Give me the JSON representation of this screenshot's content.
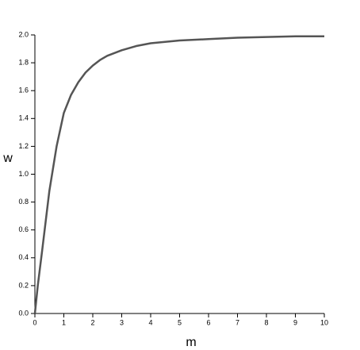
{
  "chart_data": {
    "type": "line",
    "x_label": "m",
    "y_label": "w",
    "x": [
      0,
      0.1,
      0.25,
      0.5,
      0.75,
      1,
      1.25,
      1.5,
      1.75,
      2,
      2.25,
      2.5,
      2.75,
      3,
      3.5,
      4,
      4.5,
      5,
      6,
      7,
      8,
      9,
      10
    ],
    "series": [
      {
        "color": "#555555",
        "values": [
          0,
          0.2,
          0.45,
          0.88,
          1.2,
          1.44,
          1.57,
          1.66,
          1.73,
          1.78,
          1.82,
          1.85,
          1.87,
          1.89,
          1.92,
          1.94,
          1.95,
          1.96,
          1.97,
          1.98,
          1.985,
          1.99,
          1.99
        ]
      }
    ],
    "xlim": [
      0,
      10
    ],
    "ylim": [
      0,
      2
    ],
    "xticks": [
      0,
      1,
      2,
      3,
      4,
      5,
      6,
      7,
      8,
      9,
      10
    ],
    "yticks": [
      {
        "value": 0,
        "label": "0.0"
      },
      0.2,
      0.4,
      0.6,
      0.8,
      {
        "value": 1,
        "label": "1.0"
      },
      1.2,
      1.4,
      1.6,
      1.8,
      {
        "value": 2,
        "label": "2.0"
      }
    ]
  }
}
